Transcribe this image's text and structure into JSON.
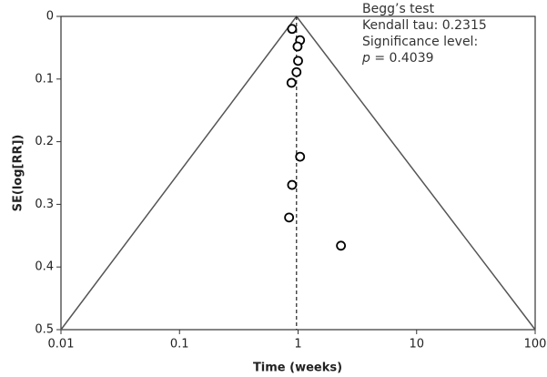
{
  "chart_data": {
    "type": "scatter",
    "xlabel": "Time (weeks)",
    "ylabel": "SE(log[RR])",
    "x_log": true,
    "y_inverted": true,
    "xlim": [
      0.01,
      100
    ],
    "ylim": [
      0,
      0.5
    ],
    "xticks": [
      0.01,
      0.1,
      1,
      10,
      100
    ],
    "yticks": [
      0,
      0.1,
      0.2,
      0.3,
      0.4,
      0.5
    ],
    "center": 0.97,
    "color": "#000000",
    "x": [
      0.89,
      1.04,
      0.99,
      1.0,
      0.97,
      0.88,
      1.04,
      0.89,
      0.84,
      2.3
    ],
    "values": [
      0.02,
      0.038,
      0.048,
      0.071,
      0.089,
      0.106,
      0.224,
      0.269,
      0.321,
      0.366
    ],
    "annotation": {
      "lines": [
        "Begg’s test",
        "Kendall tau: 0.2315",
        "Significance level:"
      ],
      "p_label": "p",
      "p_value": " = 0.4039"
    }
  }
}
